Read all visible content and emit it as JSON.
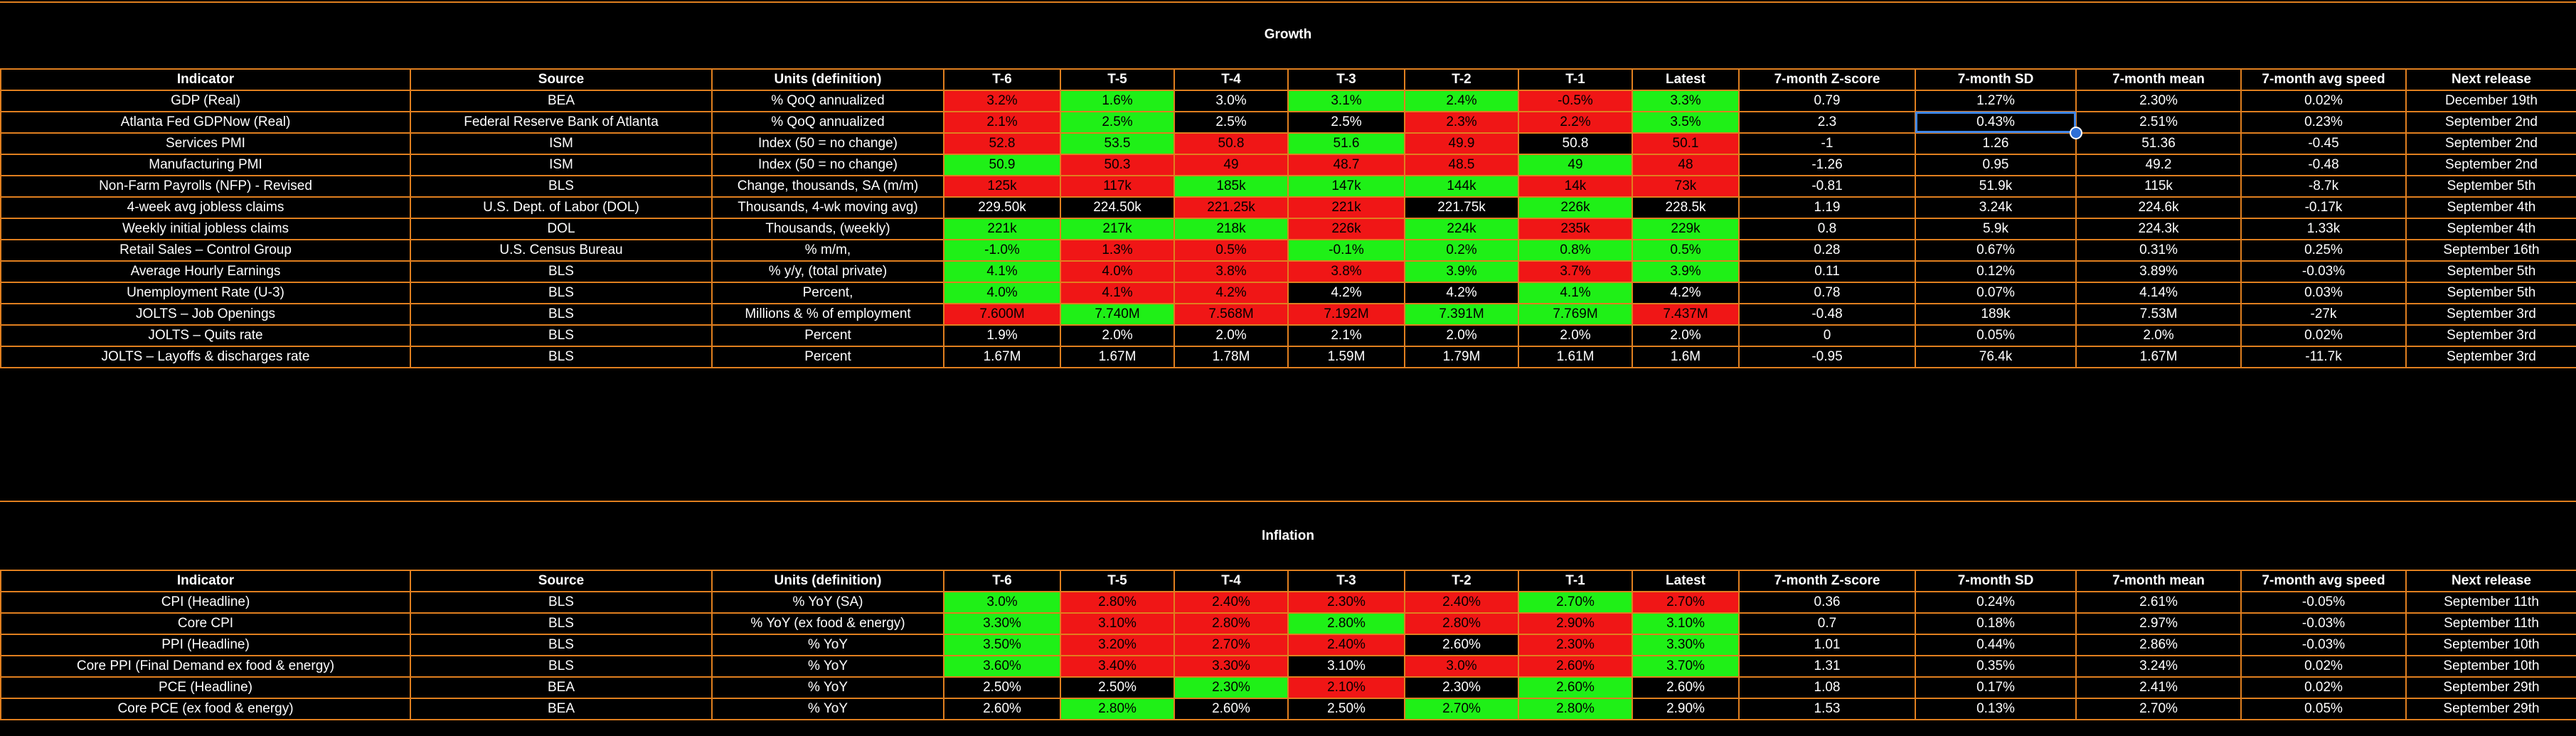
{
  "colors": {
    "border": "#e07f1f",
    "positive": "#1ff017",
    "negative": "#f01616",
    "selection": "#3f86e8"
  },
  "headers": [
    "Indicator",
    "Source",
    "Units (definition)",
    "T-6",
    "T-5",
    "T-4",
    "T-3",
    "T-2",
    "T-1",
    "Latest",
    "7-month Z-score",
    "7-month SD",
    "7-month mean",
    "7-month avg speed",
    "Next release"
  ],
  "sections": [
    {
      "title": "Growth",
      "rows": [
        {
          "indicator": "GDP (Real)",
          "source": "BEA",
          "units": "% QoQ annualized",
          "vals": [
            "3.2%",
            "1.6%",
            "3.0%",
            "3.1%",
            "2.4%",
            "-0.5%",
            "3.3%"
          ],
          "colors": [
            "r",
            "g",
            "",
            "g",
            "g",
            "r",
            "g"
          ],
          "z": "0.79",
          "sd": "1.27%",
          "mean": "2.30%",
          "speed": "0.02%",
          "next": "December 19th"
        },
        {
          "indicator": "Atlanta Fed GDPNow (Real)",
          "source": "Federal Reserve Bank of Atlanta",
          "units": "% QoQ annualized",
          "vals": [
            "2.1%",
            "2.5%",
            "2.5%",
            "2.5%",
            "2.3%",
            "2.2%",
            "3.5%"
          ],
          "colors": [
            "r",
            "g",
            "",
            "",
            "r",
            "r",
            "g"
          ],
          "z": "2.3",
          "sd": "0.43%",
          "mean": "2.51%",
          "speed": "0.23%",
          "next": "September 2nd"
        },
        {
          "indicator": "Services PMI",
          "source": "ISM",
          "units": "Index (50 = no change)",
          "vals": [
            "52.8",
            "53.5",
            "50.8",
            "51.6",
            "49.9",
            "50.8",
            "50.1"
          ],
          "colors": [
            "r",
            "g",
            "r",
            "g",
            "r",
            "",
            "r"
          ],
          "z": "-1",
          "sd": "1.26",
          "mean": "51.36",
          "speed": "-0.45",
          "next": "September 2nd"
        },
        {
          "indicator": "Manufacturing PMI",
          "source": "ISM",
          "units": "Index (50 = no change)",
          "vals": [
            "50.9",
            "50.3",
            "49",
            "48.7",
            "48.5",
            "49",
            "48"
          ],
          "colors": [
            "g",
            "r",
            "r",
            "r",
            "r",
            "g",
            "r"
          ],
          "z": "-1.26",
          "sd": "0.95",
          "mean": "49.2",
          "speed": "-0.48",
          "next": "September 2nd"
        },
        {
          "indicator": "Non-Farm Payrolls (NFP) - Revised",
          "source": "BLS",
          "units": "Change, thousands, SA (m/m)",
          "vals": [
            "125k",
            "117k",
            "185k",
            "147k",
            "144k",
            "14k",
            "73k"
          ],
          "colors": [
            "r",
            "r",
            "g",
            "g",
            "g",
            "r",
            "r"
          ],
          "z": "-0.81",
          "sd": "51.9k",
          "mean": "115k",
          "speed": "-8.7k",
          "next": "September 5th"
        },
        {
          "indicator": "4-week avg jobless claims",
          "source": "U.S. Dept. of Labor (DOL)",
          "units": "Thousands, 4-wk moving avg)",
          "vals": [
            "229.50k",
            "224.50k",
            "221.25k",
            "221k",
            "221.75k",
            "226k",
            "228.5k"
          ],
          "colors": [
            "",
            "",
            "r",
            "r",
            "",
            "g",
            ""
          ],
          "z": "1.19",
          "sd": "3.24k",
          "mean": "224.6k",
          "speed": "-0.17k",
          "next": "September 4th"
        },
        {
          "indicator": "Weekly initial jobless claims",
          "source": "DOL",
          "units": "Thousands, (weekly)",
          "vals": [
            "221k",
            "217k",
            "218k",
            "226k",
            "224k",
            "235k",
            "229k"
          ],
          "colors": [
            "g",
            "g",
            "g",
            "r",
            "g",
            "r",
            "g"
          ],
          "z": "0.8",
          "sd": "5.9k",
          "mean": "224.3k",
          "speed": "1.33k",
          "next": "September 4th"
        },
        {
          "indicator": "Retail Sales – Control Group",
          "source": "U.S. Census Bureau",
          "units": "% m/m,",
          "vals": [
            "-1.0%",
            "1.3%",
            "0.5%",
            "-0.1%",
            "0.2%",
            "0.8%",
            "0.5%"
          ],
          "colors": [
            "g",
            "r",
            "r",
            "g",
            "g",
            "g",
            "g"
          ],
          "z": "0.28",
          "sd": "0.67%",
          "mean": "0.31%",
          "speed": "0.25%",
          "next": "September 16th"
        },
        {
          "indicator": "Average Hourly Earnings",
          "source": "BLS",
          "units": "% y/y, (total private)",
          "vals": [
            "4.1%",
            "4.0%",
            "3.8%",
            "3.8%",
            "3.9%",
            "3.7%",
            "3.9%"
          ],
          "colors": [
            "g",
            "r",
            "r",
            "r",
            "g",
            "r",
            "g"
          ],
          "z": "0.11",
          "sd": "0.12%",
          "mean": "3.89%",
          "speed": "-0.03%",
          "next": "September 5th"
        },
        {
          "indicator": "Unemployment Rate (U-3)",
          "source": "BLS",
          "units": "Percent,",
          "vals": [
            "4.0%",
            "4.1%",
            "4.2%",
            "4.2%",
            "4.2%",
            "4.1%",
            "4.2%"
          ],
          "colors": [
            "g",
            "r",
            "r",
            "",
            "",
            "g",
            ""
          ],
          "z": "0.78",
          "sd": "0.07%",
          "mean": "4.14%",
          "speed": "0.03%",
          "next": "September 5th"
        },
        {
          "indicator": "JOLTS – Job Openings",
          "source": "BLS",
          "units": "Millions & % of employment",
          "vals": [
            "7.600M",
            "7.740M",
            "7.568M",
            "7.192M",
            "7.391M",
            "7.769M",
            "7.437M"
          ],
          "colors": [
            "r",
            "g",
            "r",
            "r",
            "g",
            "g",
            "r"
          ],
          "z": "-0.48",
          "sd": "189k",
          "mean": "7.53M",
          "speed": "-27k",
          "next": "September 3rd"
        },
        {
          "indicator": "JOLTS – Quits rate",
          "source": "BLS",
          "units": "Percent",
          "vals": [
            "1.9%",
            "2.0%",
            "2.0%",
            "2.1%",
            "2.0%",
            "2.0%",
            "2.0%"
          ],
          "colors": [
            "",
            "",
            "",
            "",
            "",
            "",
            ""
          ],
          "z": "0",
          "sd": "0.05%",
          "mean": "2.0%",
          "speed": "0.02%",
          "next": "September 3rd"
        },
        {
          "indicator": "JOLTS – Layoffs & discharges rate",
          "source": "BLS",
          "units": "Percent",
          "vals": [
            "1.67M",
            "1.67M",
            "1.78M",
            "1.59M",
            "1.79M",
            "1.61M",
            "1.6M"
          ],
          "colors": [
            "",
            "",
            "",
            "",
            "",
            "",
            ""
          ],
          "z": "-0.95",
          "sd": "76.4k",
          "mean": "1.67M",
          "speed": "-11.7k",
          "next": "September 3rd"
        }
      ]
    },
    {
      "title": "Inflation",
      "rows": [
        {
          "indicator": "CPI (Headline)",
          "source": "BLS",
          "units": "% YoY (SA)",
          "vals": [
            "3.0%",
            "2.80%",
            "2.40%",
            "2.30%",
            "2.40%",
            "2.70%",
            "2.70%"
          ],
          "colors": [
            "g",
            "r",
            "r",
            "r",
            "r",
            "g",
            "r"
          ],
          "z": "0.36",
          "sd": "0.24%",
          "mean": "2.61%",
          "speed": "-0.05%",
          "next": "September 11th"
        },
        {
          "indicator": "Core CPI",
          "source": "BLS",
          "units": "% YoY (ex food & energy)",
          "vals": [
            "3.30%",
            "3.10%",
            "2.80%",
            "2.80%",
            "2.80%",
            "2.90%",
            "3.10%"
          ],
          "colors": [
            "g",
            "r",
            "r",
            "g",
            "r",
            "r",
            "g"
          ],
          "z": "0.7",
          "sd": "0.18%",
          "mean": "2.97%",
          "speed": "-0.03%",
          "next": "September 11th"
        },
        {
          "indicator": "PPI (Headline)",
          "source": "BLS",
          "units": "% YoY",
          "vals": [
            "3.50%",
            "3.20%",
            "2.70%",
            "2.40%",
            "2.60%",
            "2.30%",
            "3.30%"
          ],
          "colors": [
            "g",
            "r",
            "r",
            "r",
            "",
            "r",
            "g"
          ],
          "z": "1.01",
          "sd": "0.44%",
          "mean": "2.86%",
          "speed": "-0.03%",
          "next": "September 10th"
        },
        {
          "indicator": "Core PPI (Final Demand ex food & energy)",
          "source": "BLS",
          "units": "% YoY",
          "vals": [
            "3.60%",
            "3.40%",
            "3.30%",
            "3.10%",
            "3.0%",
            "2.60%",
            "3.70%"
          ],
          "colors": [
            "g",
            "r",
            "r",
            "",
            "r",
            "r",
            "g"
          ],
          "z": "1.31",
          "sd": "0.35%",
          "mean": "3.24%",
          "speed": "0.02%",
          "next": "September 10th"
        },
        {
          "indicator": "PCE (Headline)",
          "source": "BEA",
          "units": "% YoY",
          "vals": [
            "2.50%",
            "2.50%",
            "2.30%",
            "2.10%",
            "2.30%",
            "2.60%",
            "2.60%"
          ],
          "colors": [
            "",
            "",
            "g",
            "r",
            "",
            "g",
            ""
          ],
          "z": "1.08",
          "sd": "0.17%",
          "mean": "2.41%",
          "speed": "0.02%",
          "next": "September 29th"
        },
        {
          "indicator": "Core PCE (ex food & energy)",
          "source": "BEA",
          "units": "% YoY",
          "vals": [
            "2.60%",
            "2.80%",
            "2.60%",
            "2.50%",
            "2.70%",
            "2.80%",
            "2.90%"
          ],
          "colors": [
            "",
            "g",
            "",
            "",
            "g",
            "g",
            ""
          ],
          "z": "1.53",
          "sd": "0.13%",
          "mean": "2.70%",
          "speed": "0.05%",
          "next": "September 29th"
        }
      ]
    }
  ]
}
